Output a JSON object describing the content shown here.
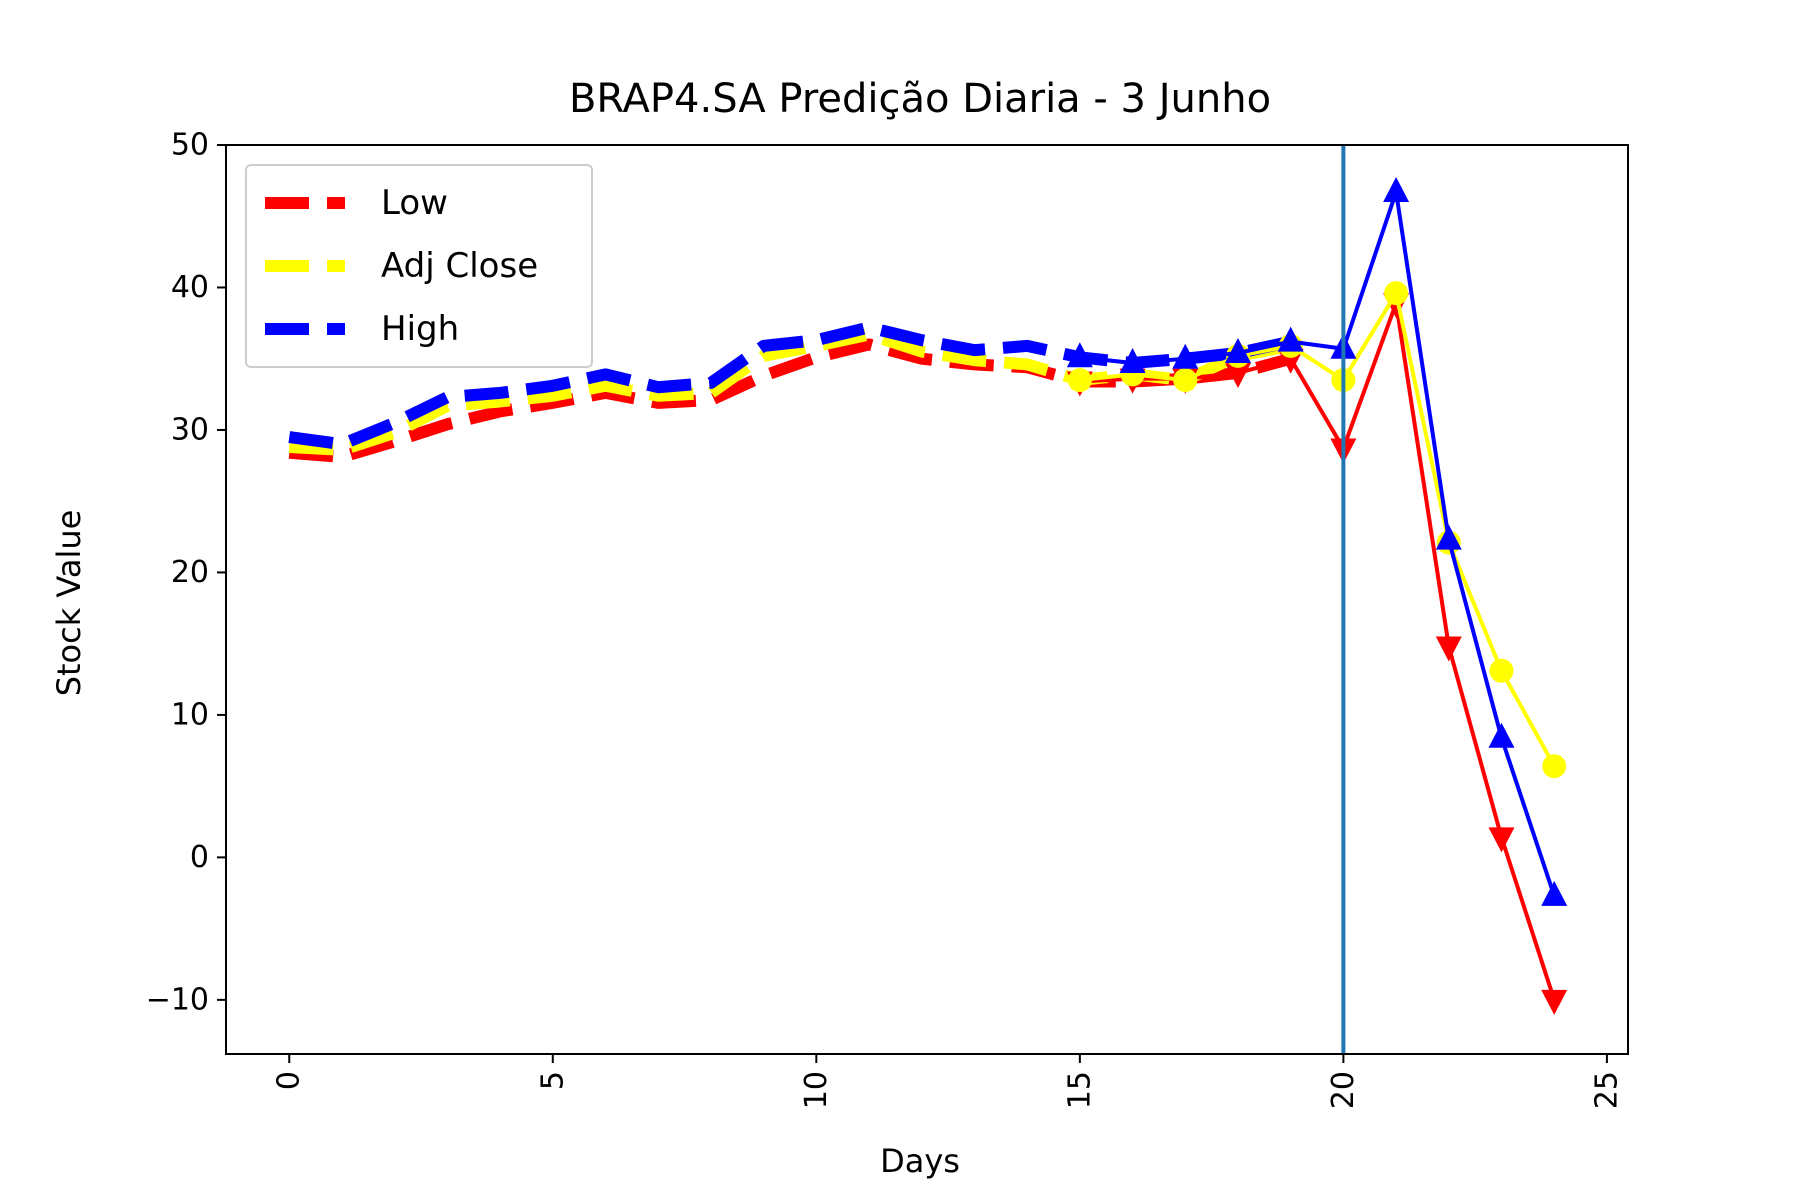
{
  "chart_data": {
    "type": "line",
    "title": "BRAP4.SA Predição Diaria - 3 Junho",
    "xlabel": "Days",
    "ylabel": "Stock Value",
    "xlim": [
      -1.2,
      25.4
    ],
    "ylim": [
      -13.8,
      50
    ],
    "xticks": [
      0,
      5,
      10,
      15,
      20,
      25
    ],
    "yticks": [
      -10,
      0,
      10,
      20,
      30,
      40,
      50
    ],
    "xtick_labels": [
      "0",
      "5",
      "10",
      "15",
      "20",
      "25"
    ],
    "ytick_labels": [
      "−10",
      "0",
      "10",
      "20",
      "30",
      "40",
      "50"
    ],
    "grid": false,
    "legend_position": "upper-left",
    "vline_x": 20,
    "vline_color": "#1f77b4",
    "historical_x": [
      0,
      1,
      2,
      3,
      4,
      5,
      6,
      7,
      8,
      9,
      10,
      11,
      12,
      13,
      14,
      15,
      16,
      17,
      18,
      19
    ],
    "prediction_x": [
      15,
      16,
      17,
      18,
      19,
      20,
      21,
      22,
      23,
      24
    ],
    "series": [
      {
        "name": "Low",
        "color": "#ff0000",
        "marker": "triangle-down",
        "historical": [
          28.4,
          28.1,
          29.2,
          30.4,
          31.3,
          31.9,
          32.6,
          31.9,
          32.1,
          33.8,
          35.1,
          36.0,
          35.0,
          34.6,
          34.4,
          33.4,
          33.4,
          33.6,
          34.0,
          35.0
        ],
        "prediction": [
          33.4,
          33.6,
          33.6,
          34.0,
          35.0,
          28.7,
          38.9,
          14.8,
          1.4,
          -10.0
        ]
      },
      {
        "name": "Adj Close",
        "color": "#ffff00",
        "marker": "circle",
        "historical": [
          28.8,
          28.6,
          29.8,
          31.7,
          32.0,
          32.4,
          33.1,
          32.4,
          32.6,
          35.2,
          35.9,
          36.7,
          35.5,
          34.9,
          34.6,
          33.5,
          33.9,
          33.5,
          35.2,
          35.9
        ],
        "prediction": [
          33.5,
          33.9,
          33.5,
          35.2,
          35.9,
          33.5,
          39.6,
          22.1,
          13.1,
          6.4
        ]
      },
      {
        "name": "High",
        "color": "#0000ff",
        "marker": "triangle-up",
        "historical": [
          29.5,
          29.0,
          30.5,
          32.3,
          32.6,
          33.1,
          33.9,
          33.0,
          33.3,
          35.9,
          36.3,
          37.2,
          36.3,
          35.6,
          35.9,
          35.1,
          34.7,
          35.0,
          35.4,
          36.2
        ],
        "prediction": [
          35.1,
          34.7,
          35.0,
          35.4,
          36.2,
          35.7,
          46.7,
          22.3,
          8.4,
          -2.7
        ]
      }
    ]
  }
}
